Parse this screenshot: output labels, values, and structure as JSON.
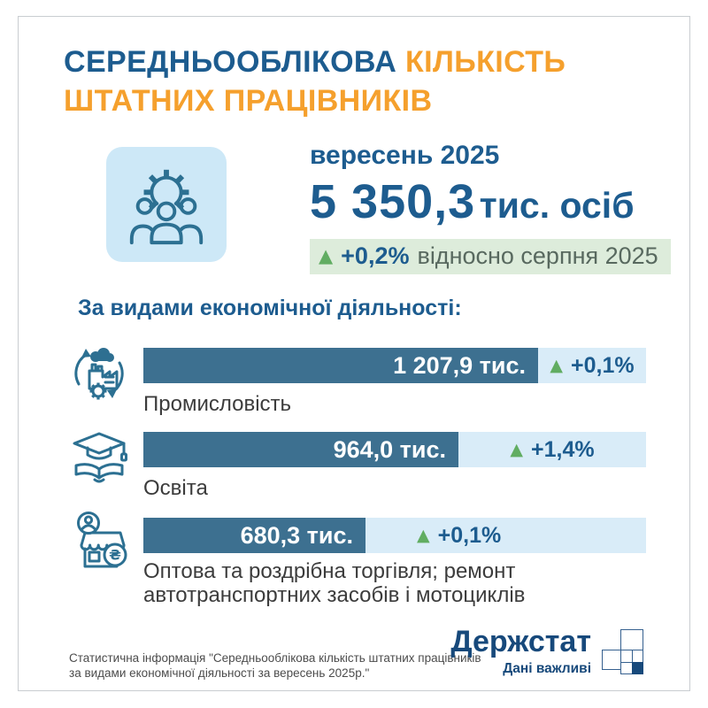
{
  "title": {
    "highlight_primary": "СЕРЕДНЬООБЛІКОВА",
    "highlight_secondary": "КІЛЬКІСТЬ",
    "line2": "ШТАТНИХ ПРАЦІВНИКІВ"
  },
  "summary": {
    "icon": "gear-people-icon",
    "period": "вересень 2025",
    "value": "5 350,3",
    "unit": "тис. осіб",
    "change_arrow": "▲",
    "change_value": "+0,2%",
    "change_label": "відносно серпня 2025"
  },
  "section_heading": "За видами економічної діяльності:",
  "chart_data": {
    "type": "bar",
    "orientation": "horizontal",
    "title": "За видами економічної діяльності:",
    "unit": "тис. осіб",
    "categories": [
      "Промисловість",
      "Освіта",
      "Оптова та роздрібна торгівля; ремонт автотранспортних засобів і мотоциклів"
    ],
    "values": [
      1207.9,
      964.0,
      680.3
    ],
    "value_labels": [
      "1 207,9 тис.",
      "964,0 тис.",
      "680,3 тис."
    ],
    "change_arrow": "▲",
    "changes": [
      "+0,1%",
      "+1,4%",
      "+0,1%"
    ],
    "icons": [
      "industry-icon",
      "education-icon",
      "trade-icon"
    ],
    "xlim": [
      0,
      1207.9
    ],
    "bar_color": "#3d7090",
    "track_color": "#d9ecf8",
    "legend": "none",
    "grid": false
  },
  "footer": {
    "note_lines": [
      "Статистична інформація \"Середньооблікова кількість штатних працівників",
      "за видами економічної діяльності за вересень 2025р.\""
    ],
    "logo_name": "Держстат",
    "logo_tagline": "Дані важливі"
  },
  "colors": {
    "primary_blue": "#1d5c8f",
    "accent_orange": "#f5a02d",
    "bar_dark": "#3d7090",
    "bar_light": "#d9ecf8",
    "green_up": "#61ad62",
    "badge_bg": "#ddecdb",
    "logo_navy": "#17497b",
    "icon_stroke": "#2c7092"
  }
}
